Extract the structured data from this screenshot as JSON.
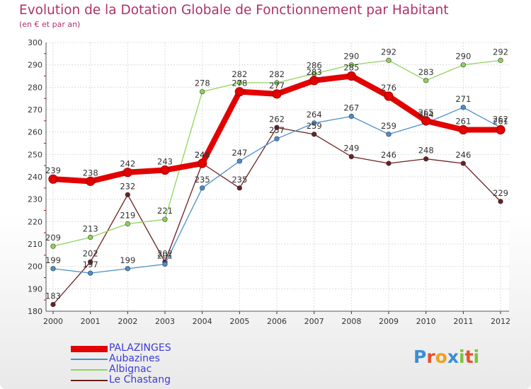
{
  "title": "Evolution de la Dotation Globale de Fonctionnement par Habitant",
  "subtitle": "(en € et par an)",
  "logo": "Proxiti",
  "chart_data": {
    "type": "line",
    "x": [
      "2000",
      "2001",
      "2002",
      "2003",
      "2004",
      "2005",
      "2006",
      "2007",
      "2008",
      "2009",
      "2010",
      "2011",
      "2012"
    ],
    "ylim": [
      180,
      300
    ],
    "yticks": [
      180,
      190,
      200,
      210,
      220,
      230,
      240,
      250,
      260,
      270,
      280,
      290,
      300
    ],
    "grid": true,
    "legend": "bottom-left",
    "series": [
      {
        "name": "PALAZINGES",
        "color": "#e30000",
        "values": [
          239,
          238,
          242,
          243,
          246,
          278,
          277,
          283,
          285,
          276,
          265,
          261,
          261
        ]
      },
      {
        "name": "Aubazines",
        "color": "#4a8fcc",
        "values": [
          199,
          197,
          199,
          201,
          235,
          247,
          257,
          264,
          267,
          259,
          264,
          271,
          262
        ]
      },
      {
        "name": "Albignac",
        "color": "#8fd45a",
        "values": [
          209,
          213,
          219,
          221,
          278,
          282,
          282,
          286,
          290,
          292,
          283,
          290,
          292
        ]
      },
      {
        "name": "Le Chastang",
        "color": "#6b1f1f",
        "values": [
          183,
          202,
          232,
          202,
          246,
          235,
          262,
          259,
          249,
          246,
          248,
          246,
          229
        ]
      }
    ]
  }
}
